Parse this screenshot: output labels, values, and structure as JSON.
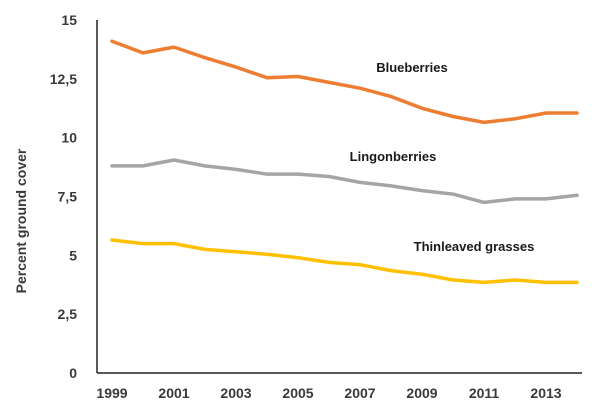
{
  "chart_data": {
    "type": "line",
    "title": "",
    "xlabel": "",
    "ylabel": "Percent ground cover",
    "x": [
      1999,
      2000,
      2001,
      2002,
      2003,
      2004,
      2005,
      2006,
      2007,
      2008,
      2009,
      2010,
      2011,
      2012,
      2013,
      2014
    ],
    "x_tick_labels": [
      "1999",
      "2001",
      "2003",
      "2005",
      "2007",
      "2009",
      "2011",
      "2013"
    ],
    "y_tick_labels": [
      "0",
      "2,5",
      "5",
      "7,5",
      "10",
      "12,5",
      "15"
    ],
    "ylim": [
      0,
      15
    ],
    "grid": false,
    "legend": "inline labels",
    "series": [
      {
        "name": "Blueberries",
        "color": "#ED7D31",
        "values": [
          14.1,
          13.6,
          13.85,
          13.4,
          13.0,
          12.55,
          12.6,
          12.35,
          12.1,
          11.75,
          11.25,
          10.9,
          10.65,
          10.8,
          11.05,
          11.05
        ]
      },
      {
        "name": "Lingonberries",
        "color": "#A5A5A5",
        "values": [
          8.8,
          8.8,
          9.05,
          8.8,
          8.65,
          8.45,
          8.45,
          8.35,
          8.1,
          7.95,
          7.75,
          7.6,
          7.25,
          7.4,
          7.4,
          7.55
        ]
      },
      {
        "name": "Thinleaved grasses",
        "color": "#FFC000",
        "values": [
          5.65,
          5.5,
          5.5,
          5.25,
          5.15,
          5.05,
          4.9,
          4.7,
          4.6,
          4.35,
          4.2,
          3.95,
          3.85,
          3.95,
          3.85,
          3.85
        ]
      }
    ]
  }
}
